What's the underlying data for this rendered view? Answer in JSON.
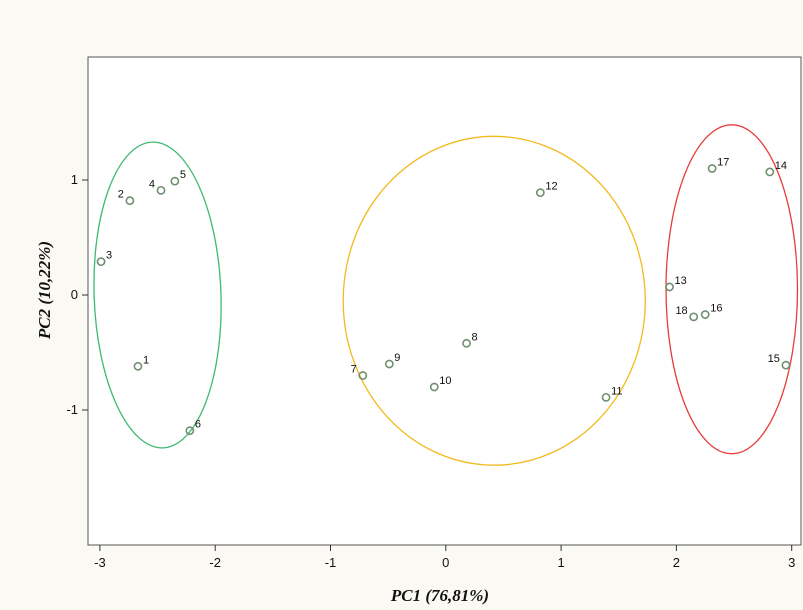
{
  "chart_data": {
    "type": "scatter",
    "title": "",
    "xlabel": "PC1 (76,81%)",
    "ylabel": "PC2 (10,22%)",
    "xlim": [
      -3.2,
      3.2
    ],
    "ylim": [
      -2.2,
      2.1
    ],
    "xticks": [
      -3,
      -2,
      -1,
      0,
      1,
      2,
      3
    ],
    "yticks": [
      -1,
      0,
      1
    ],
    "grid": false,
    "marker_color": "#6f8f6f",
    "points": [
      {
        "label": "1",
        "x": -2.67,
        "y": -0.62
      },
      {
        "label": "2",
        "x": -2.74,
        "y": 0.82
      },
      {
        "label": "3",
        "x": -2.99,
        "y": 0.29
      },
      {
        "label": "4",
        "x": -2.47,
        "y": 0.91
      },
      {
        "label": "5",
        "x": -2.35,
        "y": 0.99
      },
      {
        "label": "6",
        "x": -2.22,
        "y": -1.18
      },
      {
        "label": "7",
        "x": -0.72,
        "y": -0.7
      },
      {
        "label": "8",
        "x": 0.18,
        "y": -0.42
      },
      {
        "label": "9",
        "x": -0.49,
        "y": -0.6
      },
      {
        "label": "10",
        "x": -0.1,
        "y": -0.8
      },
      {
        "label": "11",
        "x": 1.39,
        "y": -0.89
      },
      {
        "label": "12",
        "x": 0.82,
        "y": 0.89
      },
      {
        "label": "13",
        "x": 1.94,
        "y": 0.07
      },
      {
        "label": "14",
        "x": 2.81,
        "y": 1.07
      },
      {
        "label": "15",
        "x": 2.95,
        "y": -0.61
      },
      {
        "label": "16",
        "x": 2.25,
        "y": -0.17
      },
      {
        "label": "17",
        "x": 2.31,
        "y": 1.1
      },
      {
        "label": "18",
        "x": 2.15,
        "y": -0.19
      }
    ],
    "clusters": [
      {
        "color": "#3cba70",
        "members": [
          "1",
          "2",
          "3",
          "4",
          "5",
          "6"
        ],
        "cx": -2.5,
        "cy": 0.0,
        "rx": 0.55,
        "ry": 1.33,
        "angle": -2
      },
      {
        "color": "#f3b91d",
        "members": [
          "7",
          "8",
          "9",
          "10",
          "11",
          "12"
        ],
        "cx": 0.42,
        "cy": -0.05,
        "rx": 1.31,
        "ry": 1.43,
        "angle": 0
      },
      {
        "color": "#e83b3b",
        "members": [
          "13",
          "14",
          "15",
          "16",
          "17",
          "18"
        ],
        "cx": 2.48,
        "cy": 0.05,
        "rx": 0.57,
        "ry": 1.43,
        "angle": 0
      }
    ]
  }
}
